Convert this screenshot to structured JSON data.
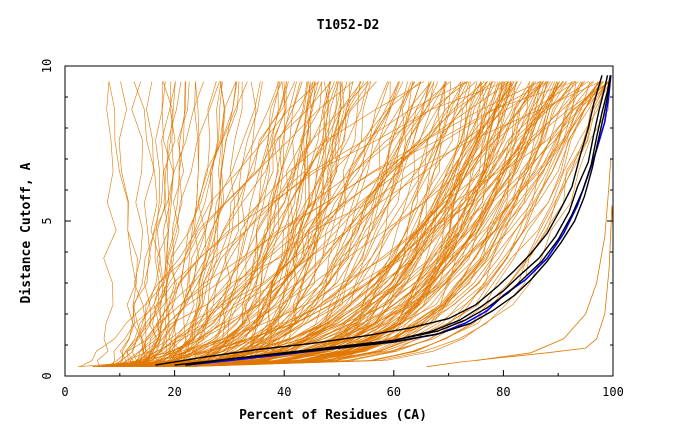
{
  "chart_data": {
    "type": "line",
    "title": "T1052-D2",
    "xlabel": "Percent of Residues (CA)",
    "ylabel": "Distance Cutoff, A",
    "xlim": [
      0,
      100
    ],
    "ylim": [
      0,
      10
    ],
    "x_ticks": [
      0,
      20,
      40,
      60,
      80,
      100
    ],
    "y_ticks": [
      0,
      5,
      10
    ],
    "grid": false,
    "legend": "none",
    "colors": {
      "models": "#e07800",
      "highlight": "#000000",
      "best": "#0000ff"
    },
    "series": [
      {
        "role": "best",
        "x": [
          22,
          30,
          40,
          50,
          60,
          68,
          73,
          77,
          80,
          84,
          88,
          91,
          93.5,
          95.5,
          97,
          98.5,
          99.2,
          99.6
        ],
        "y": [
          0.35,
          0.5,
          0.7,
          0.9,
          1.1,
          1.35,
          1.7,
          2.1,
          2.6,
          3.1,
          3.8,
          4.6,
          5.5,
          6.5,
          7.3,
          8.2,
          9.0,
          9.7
        ]
      },
      {
        "role": "highlight",
        "x": [
          16.5,
          25,
          35,
          45,
          55,
          63,
          70,
          75,
          79,
          82,
          85,
          88,
          90.5,
          92.5,
          94,
          95.5,
          96.5,
          97.5,
          98
        ],
        "y": [
          0.35,
          0.6,
          0.85,
          1.05,
          1.3,
          1.55,
          1.85,
          2.3,
          2.9,
          3.4,
          3.95,
          4.6,
          5.4,
          6.1,
          7.1,
          8.0,
          8.8,
          9.4,
          9.7
        ]
      },
      {
        "role": "highlight",
        "x": [
          22,
          30,
          40,
          50,
          60,
          67,
          72,
          76,
          80,
          83,
          86.5,
          89.5,
          92,
          93.5,
          95.5,
          96.5,
          97.5,
          98.5,
          99
        ],
        "y": [
          0.35,
          0.55,
          0.75,
          0.95,
          1.15,
          1.45,
          1.8,
          2.25,
          2.75,
          3.25,
          3.8,
          4.5,
          5.3,
          6.1,
          6.9,
          7.8,
          8.6,
          9.3,
          9.7
        ]
      },
      {
        "role": "highlight",
        "x": [
          20,
          30,
          40,
          50,
          60,
          68,
          73,
          77,
          81,
          84,
          87,
          90,
          92.5,
          94.5,
          96,
          97,
          98,
          99,
          99.5
        ],
        "y": [
          0.35,
          0.55,
          0.75,
          0.95,
          1.15,
          1.45,
          1.8,
          2.2,
          2.7,
          3.2,
          3.7,
          4.4,
          5.2,
          6.0,
          6.8,
          7.7,
          8.5,
          9.2,
          9.7
        ]
      },
      {
        "role": "highlight",
        "x": [
          22,
          30,
          40,
          50,
          60,
          68,
          74,
          78,
          82,
          85,
          88,
          90.5,
          93,
          94.8,
          96.2,
          97.3,
          98.3,
          99.2,
          99.6
        ],
        "y": [
          0.35,
          0.55,
          0.72,
          0.9,
          1.1,
          1.35,
          1.7,
          2.1,
          2.6,
          3.1,
          3.7,
          4.3,
          5.0,
          5.8,
          6.7,
          7.6,
          8.4,
          9.2,
          9.7
        ]
      },
      {
        "role": "model",
        "x": [
          66,
          72,
          80,
          88,
          95,
          97,
          98.5,
          99.3,
          99.8,
          100
        ],
        "y": [
          0.3,
          0.45,
          0.6,
          0.75,
          0.9,
          1.2,
          2.0,
          3.5,
          5.5,
          4.8
        ]
      },
      {
        "role": "model",
        "x": [
          75,
          85,
          91,
          95,
          97,
          98.5,
          99.2,
          99.6
        ],
        "y": [
          0.5,
          0.75,
          1.2,
          2.0,
          3.0,
          4.5,
          6.0,
          7.0
        ]
      }
    ]
  }
}
